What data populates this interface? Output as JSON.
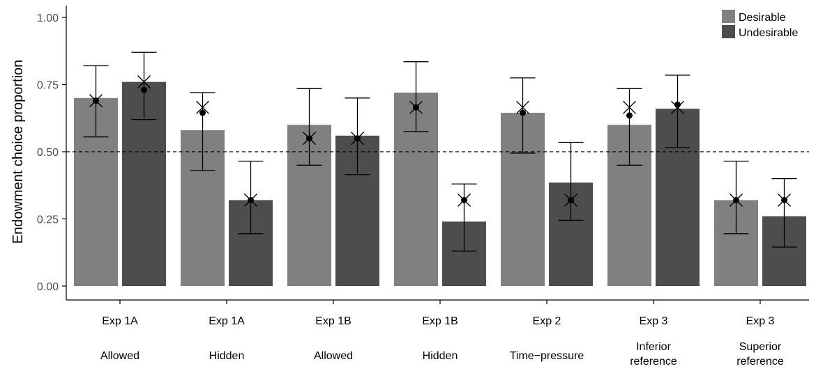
{
  "chart_data": {
    "type": "bar",
    "title": "",
    "xlabel": "",
    "ylabel": "Endowment choice proportion",
    "ylim": [
      0,
      1.0
    ],
    "yticks": [
      "0.00",
      "0.25",
      "0.50",
      "0.75",
      "1.00"
    ],
    "reference_line": 0.5,
    "grid": false,
    "legend_position": "top-right",
    "categories": [
      {
        "line1": "Exp 1A",
        "line2": "Allowed",
        "line3": ""
      },
      {
        "line1": "Exp 1A",
        "line2": "Hidden",
        "line3": ""
      },
      {
        "line1": "Exp 1B",
        "line2": "Allowed",
        "line3": ""
      },
      {
        "line1": "Exp 1B",
        "line2": "Hidden",
        "line3": ""
      },
      {
        "line1": "Exp 2",
        "line2": "Time−pressure",
        "line3": ""
      },
      {
        "line1": "Exp 3",
        "line2": "Inferior",
        "line3": "reference"
      },
      {
        "line1": "Exp 3",
        "line2": "Superior",
        "line3": "reference"
      }
    ],
    "series": [
      {
        "name": "Desirable",
        "color": "#808080",
        "values": [
          0.7,
          0.58,
          0.6,
          0.72,
          0.645,
          0.6,
          0.32
        ],
        "ci_low": [
          0.555,
          0.43,
          0.45,
          0.575,
          0.495,
          0.45,
          0.195
        ],
        "ci_high": [
          0.82,
          0.72,
          0.735,
          0.835,
          0.775,
          0.735,
          0.465
        ],
        "dot": [
          0.69,
          0.645,
          0.55,
          0.665,
          0.645,
          0.635,
          0.32
        ],
        "cross": [
          0.69,
          0.665,
          0.55,
          0.665,
          0.665,
          0.665,
          0.32
        ]
      },
      {
        "name": "Undesirable",
        "color": "#4d4d4d",
        "values": [
          0.76,
          0.32,
          0.56,
          0.24,
          0.385,
          0.66,
          0.26
        ],
        "ci_low": [
          0.62,
          0.195,
          0.415,
          0.13,
          0.245,
          0.515,
          0.145
        ],
        "ci_high": [
          0.87,
          0.465,
          0.7,
          0.38,
          0.535,
          0.785,
          0.4
        ],
        "dot": [
          0.73,
          0.32,
          0.55,
          0.32,
          0.32,
          0.675,
          0.32
        ],
        "cross": [
          0.76,
          0.32,
          0.55,
          0.32,
          0.32,
          0.665,
          0.32
        ]
      }
    ]
  }
}
